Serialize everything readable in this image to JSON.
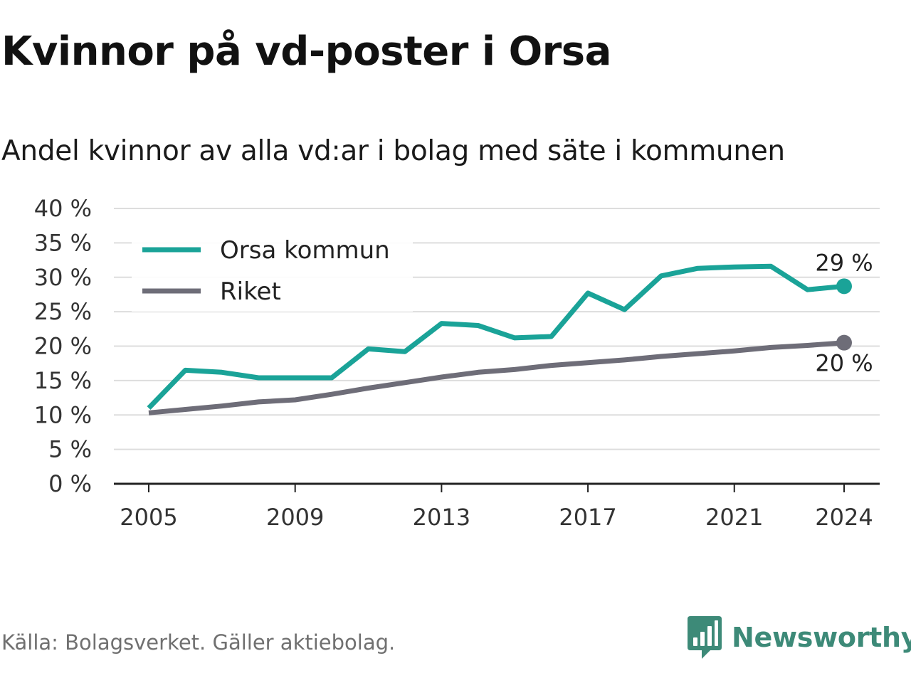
{
  "title": "Kvinnor på vd-poster i Orsa",
  "subtitle": "Andel kvinnor av alla vd:ar i bolag med säte i kommunen",
  "source": "Källa: Bolagsverket. Gäller aktiebolag.",
  "brand": {
    "name": "Newsworthy",
    "icon": "newsworthy-logo-icon",
    "color": "#3d8a78"
  },
  "chart_data": {
    "type": "line",
    "title": "",
    "xlabel": "",
    "ylabel": "",
    "x": [
      2005,
      2006,
      2007,
      2008,
      2009,
      2010,
      2011,
      2012,
      2013,
      2014,
      2015,
      2016,
      2017,
      2018,
      2019,
      2020,
      2021,
      2022,
      2023,
      2024
    ],
    "x_ticks": [
      2005,
      2009,
      2013,
      2017,
      2021,
      2024
    ],
    "x_tick_labels": [
      "2005",
      "2009",
      "2013",
      "2017",
      "2021",
      "2024"
    ],
    "y_ticks": [
      0,
      5,
      10,
      15,
      20,
      25,
      30,
      35,
      40
    ],
    "y_tick_labels": [
      "0 %",
      "5 %",
      "10 %",
      "15 %",
      "20 %",
      "25 %",
      "30 %",
      "35 %",
      "40 %"
    ],
    "ylim": [
      0,
      40
    ],
    "grid": true,
    "legend_position": "top-left",
    "series": [
      {
        "name": "Orsa kommun",
        "color": "#1aa398",
        "values": [
          11.0,
          16.5,
          16.2,
          15.4,
          15.4,
          15.4,
          19.6,
          19.2,
          23.3,
          23.0,
          21.2,
          21.4,
          27.7,
          25.3,
          30.2,
          31.3,
          31.5,
          31.6,
          28.2,
          28.7
        ],
        "end_label": "29 %"
      },
      {
        "name": "Riket",
        "color": "#6e6d78",
        "values": [
          10.3,
          10.8,
          11.3,
          11.9,
          12.2,
          13.0,
          13.9,
          14.7,
          15.5,
          16.2,
          16.6,
          17.2,
          17.6,
          18.0,
          18.5,
          18.9,
          19.3,
          19.8,
          20.1,
          20.5
        ],
        "end_label": "20 %"
      }
    ]
  }
}
